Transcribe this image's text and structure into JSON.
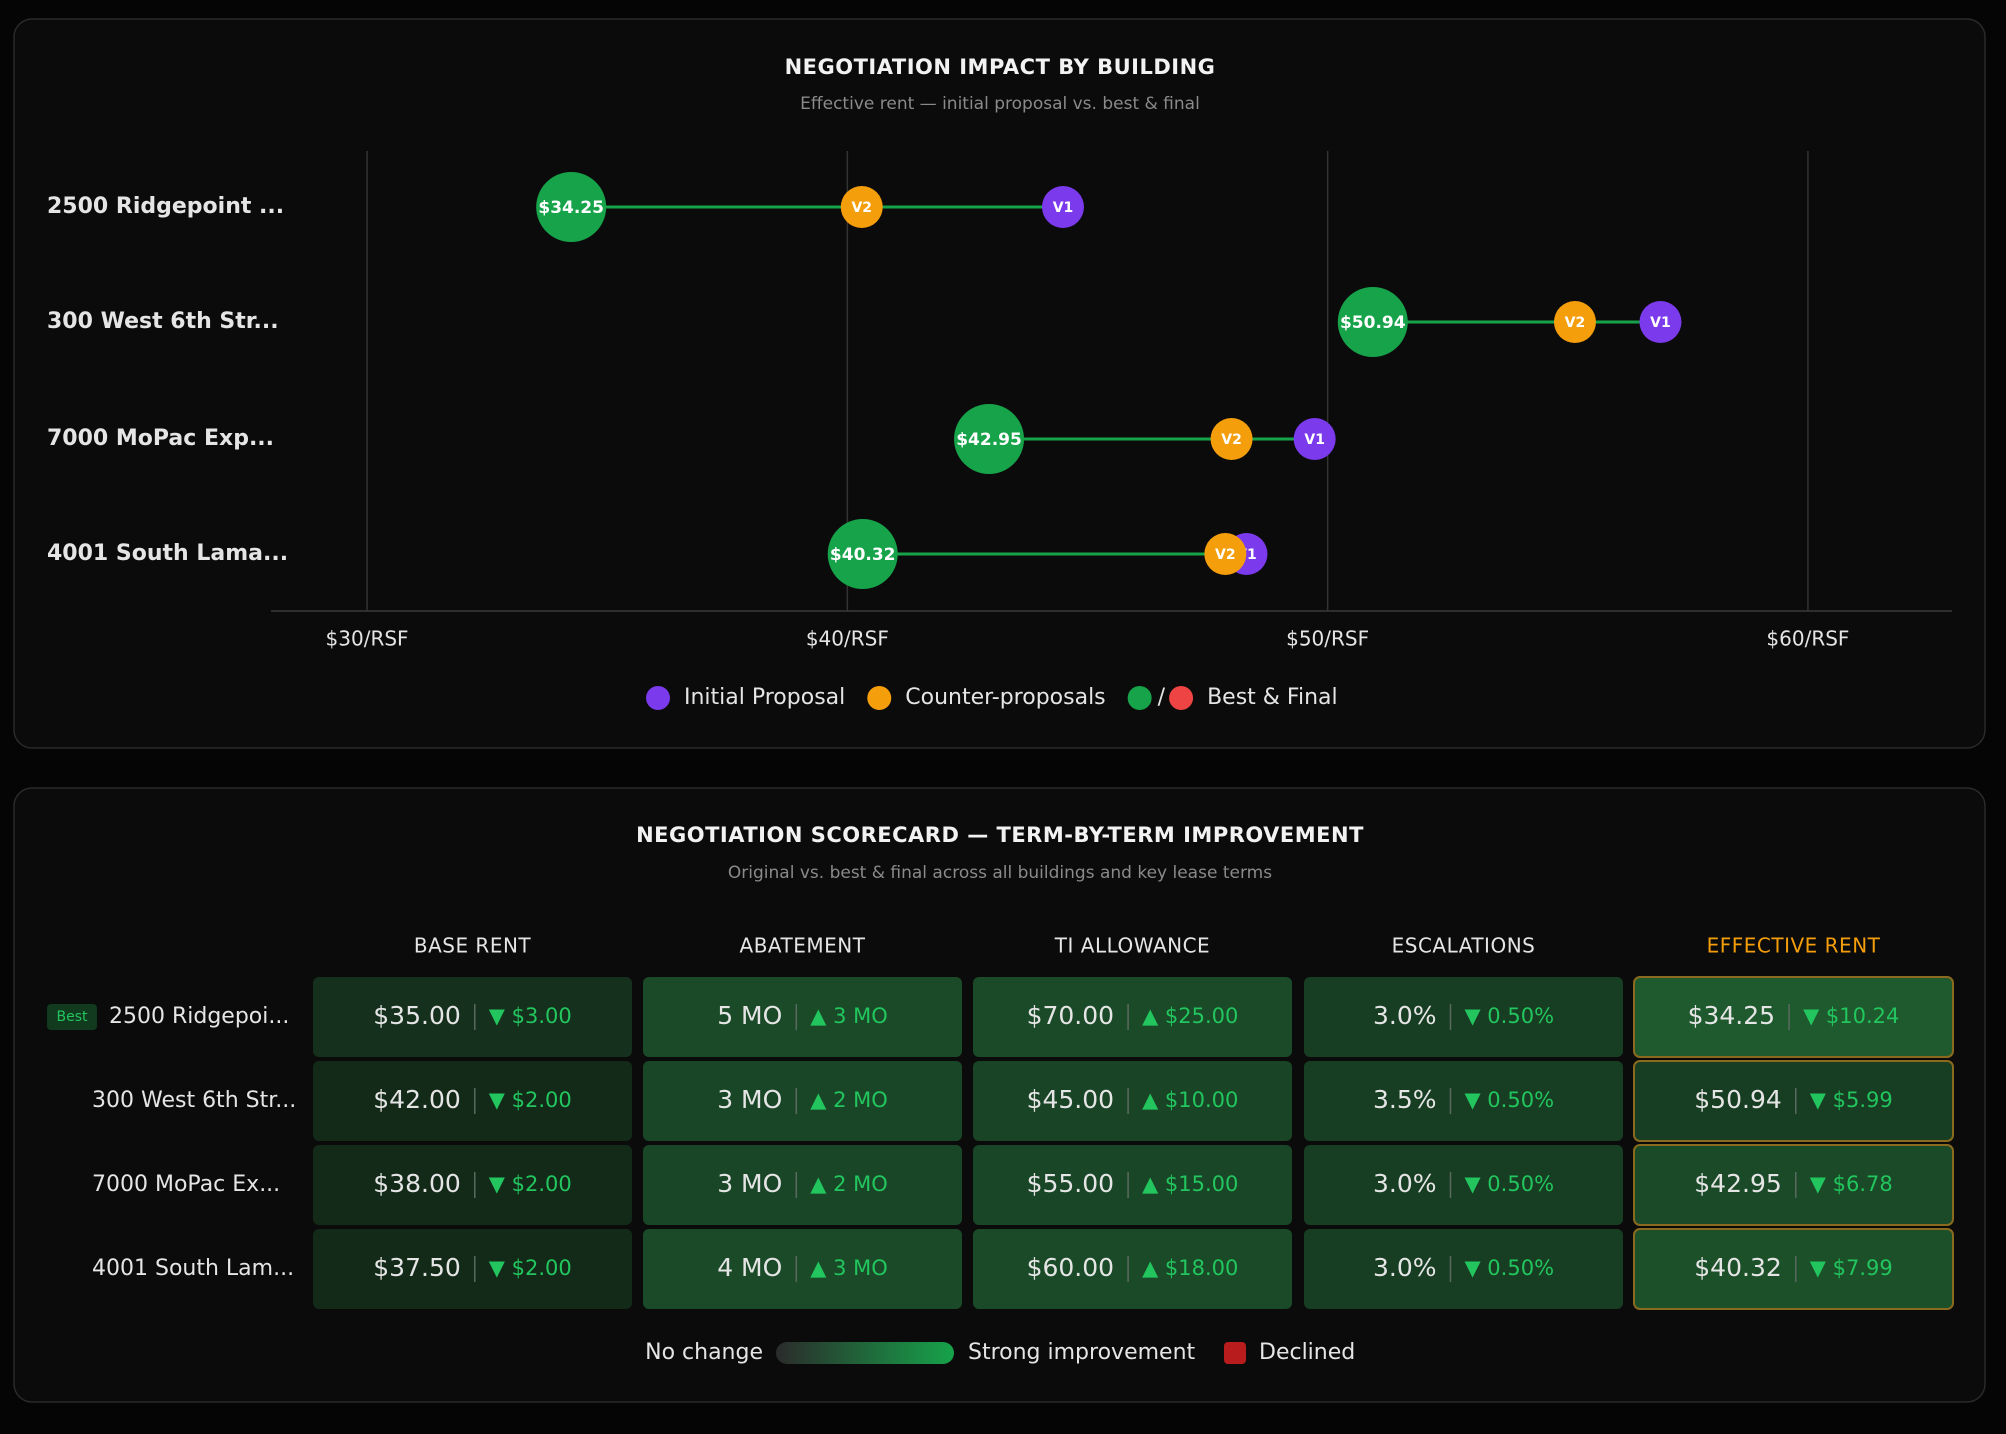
{
  "chart_data": {
    "type": "dumbbell",
    "title": "NEGOTIATION IMPACT BY BUILDING",
    "subtitle": "Effective rent — initial proposal vs. best & final",
    "categories": [
      "2500 Ridgepoint ...",
      "300 West 6th Str...",
      "7000 MoPac Exp...",
      "4001 South Lama..."
    ],
    "series": [
      {
        "name": "Initial Proposal",
        "color": "#7c3aed",
        "marker_label": "V1",
        "values": [
          44.49,
          56.93,
          49.73,
          48.31
        ]
      },
      {
        "name": "Counter-proposals",
        "color": "#f59e0b",
        "marker_label": "V2",
        "values": [
          40.3,
          55.15,
          48.0,
          47.87
        ]
      },
      {
        "name": "Best & Final",
        "color": "#16a34a",
        "decline_color": "#ef4444",
        "legend_separator": "/",
        "values": [
          34.25,
          50.94,
          42.95,
          40.32
        ],
        "value_labels": [
          "$34.25",
          "$50.94",
          "$42.95",
          "$40.32"
        ]
      }
    ],
    "xlim": [
      28,
      63
    ],
    "xticks": [
      {
        "value": 30,
        "label": "$30/RSF"
      },
      {
        "value": 40,
        "label": "$40/RSF"
      },
      {
        "value": 50,
        "label": "$50/RSF"
      },
      {
        "value": 60,
        "label": "$60/RSF"
      }
    ],
    "grid": true
  },
  "scorecard": {
    "title": "NEGOTIATION SCORECARD — TERM-BY-TERM IMPROVEMENT",
    "subtitle": "Original vs. best & final across all buildings and key lease terms",
    "columns": [
      "BASE RENT",
      "ABATEMENT",
      "TI ALLOWANCE",
      "ESCALATIONS",
      "EFFECTIVE RENT"
    ],
    "rows": [
      {
        "badge": "Best",
        "label": "2500 Ridgepoi...",
        "cells": [
          {
            "value": "$35.00",
            "change": "▼ $3.00",
            "color": "#15301c"
          },
          {
            "value": "5 MO",
            "change": "▲ 3 MO",
            "color": "#1a4a28"
          },
          {
            "value": "$70.00",
            "change": "▲ $25.00",
            "color": "#1a4a28"
          },
          {
            "value": "3.0%",
            "change": "▼ 0.50%",
            "color": "#173d22"
          },
          {
            "value": "$34.25",
            "change": "▼ $10.24",
            "color": "#1f5a2e"
          }
        ]
      },
      {
        "label": "300 West 6th Str...",
        "cells": [
          {
            "value": "$42.00",
            "change": "▼ $2.00",
            "color": "#132a19"
          },
          {
            "value": "3 MO",
            "change": "▲ 2 MO",
            "color": "#1a4628"
          },
          {
            "value": "$45.00",
            "change": "▲ $10.00",
            "color": "#194426"
          },
          {
            "value": "3.5%",
            "change": "▼ 0.50%",
            "color": "#173d22"
          },
          {
            "value": "$50.94",
            "change": "▼ $5.99",
            "color": "#173d22"
          }
        ]
      },
      {
        "label": "7000 MoPac Ex...",
        "cells": [
          {
            "value": "$38.00",
            "change": "▼ $2.00",
            "color": "#132a19"
          },
          {
            "value": "3 MO",
            "change": "▲ 2 MO",
            "color": "#1a4628"
          },
          {
            "value": "$55.00",
            "change": "▲ $15.00",
            "color": "#1a4628"
          },
          {
            "value": "3.0%",
            "change": "▼ 0.50%",
            "color": "#173d22"
          },
          {
            "value": "$42.95",
            "change": "▼ $6.78",
            "color": "#1a4a28"
          }
        ]
      },
      {
        "label": "4001 South Lam...",
        "cells": [
          {
            "value": "$37.50",
            "change": "▼ $2.00",
            "color": "#132a19"
          },
          {
            "value": "4 MO",
            "change": "▲ 3 MO",
            "color": "#1a4a28"
          },
          {
            "value": "$60.00",
            "change": "▲ $18.00",
            "color": "#1a4a28"
          },
          {
            "value": "3.0%",
            "change": "▼ 0.50%",
            "color": "#173d22"
          },
          {
            "value": "$40.32",
            "change": "▼ $7.99",
            "color": "#1c5029"
          }
        ]
      }
    ],
    "legend": {
      "low": "No change",
      "high": "Strong improvement",
      "declined": "Declined"
    }
  }
}
